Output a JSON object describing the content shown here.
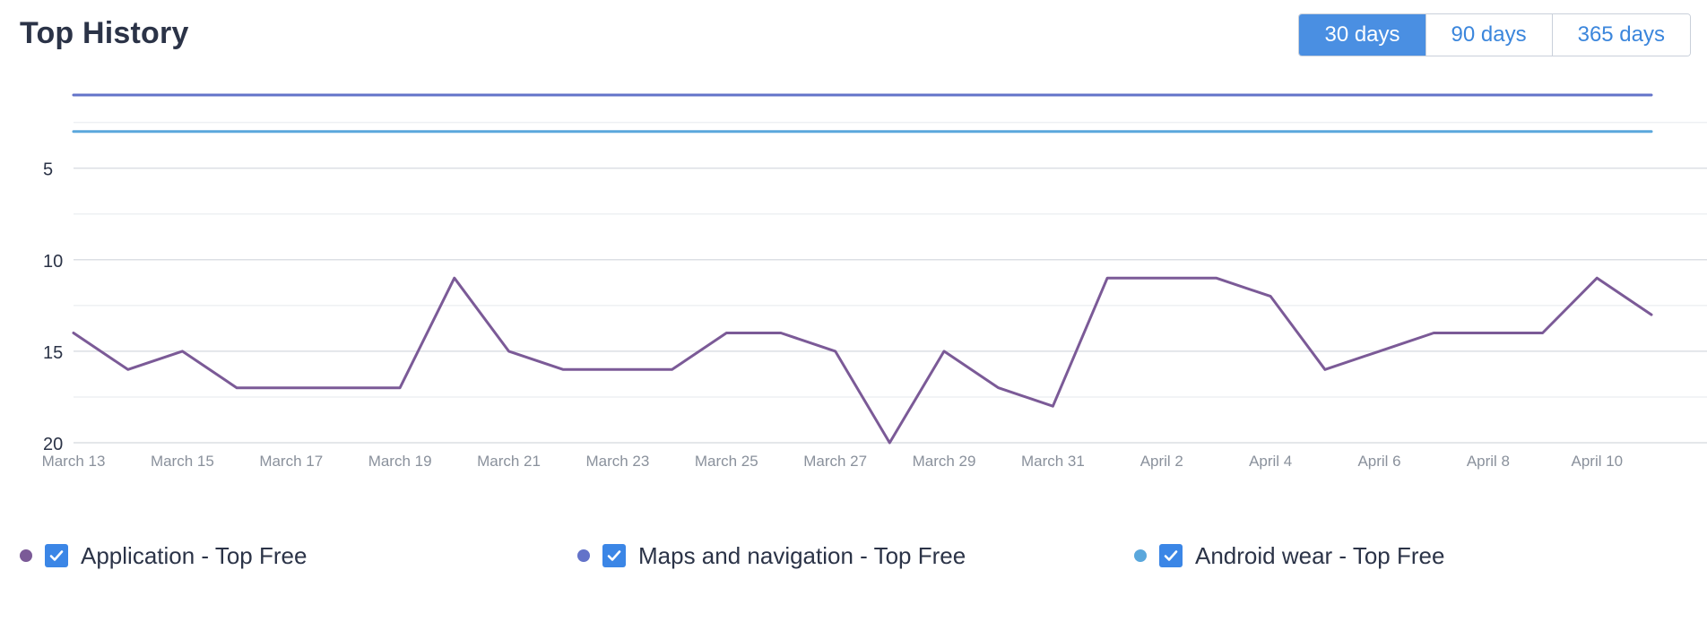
{
  "header": {
    "title": "Top History",
    "ranges": [
      {
        "label": "30 days",
        "active": true
      },
      {
        "label": "90 days",
        "active": false
      },
      {
        "label": "365 days",
        "active": false
      }
    ]
  },
  "chart_data": {
    "type": "line",
    "y_inverted": true,
    "ylim": [
      1,
      20
    ],
    "y_ticks": [
      5,
      10,
      15,
      20
    ],
    "x": [
      "March 13",
      "March 14",
      "March 15",
      "March 16",
      "March 17",
      "March 18",
      "March 19",
      "March 20",
      "March 21",
      "March 22",
      "March 23",
      "March 24",
      "March 25",
      "March 26",
      "March 27",
      "March 28",
      "March 29",
      "March 30",
      "March 31",
      "April 1",
      "April 2",
      "April 3",
      "April 4",
      "April 5",
      "April 6",
      "April 7",
      "April 8",
      "April 9",
      "April 10",
      "April 11"
    ],
    "x_tick_labels": [
      "March 13",
      "March 15",
      "March 17",
      "March 19",
      "March 21",
      "March 23",
      "March 25",
      "March 27",
      "March 29",
      "March 31",
      "April 2",
      "April 4",
      "April 6",
      "April 8",
      "April 10"
    ],
    "series": [
      {
        "name": "Application - Top Free",
        "color": "#7b5a97",
        "values": [
          14,
          16,
          15,
          17,
          17,
          17,
          17,
          11,
          15,
          16,
          16,
          16,
          14,
          14,
          15,
          20,
          15,
          17,
          18,
          11,
          11,
          11,
          12,
          16,
          15,
          14,
          14,
          14,
          11,
          13
        ]
      },
      {
        "name": "Maps and navigation - Top Free",
        "color": "#6373c9",
        "values": [
          1,
          1,
          1,
          1,
          1,
          1,
          1,
          1,
          1,
          1,
          1,
          1,
          1,
          1,
          1,
          1,
          1,
          1,
          1,
          1,
          1,
          1,
          1,
          1,
          1,
          1,
          1,
          1,
          1,
          1
        ]
      },
      {
        "name": "Android wear - Top Free",
        "color": "#5aa7dc",
        "values": [
          3,
          3,
          3,
          3,
          3,
          3,
          3,
          3,
          3,
          3,
          3,
          3,
          3,
          3,
          3,
          3,
          3,
          3,
          3,
          3,
          3,
          3,
          3,
          3,
          3,
          3,
          3,
          3,
          3,
          3
        ]
      }
    ],
    "grid": true,
    "legend_position": "bottom"
  }
}
